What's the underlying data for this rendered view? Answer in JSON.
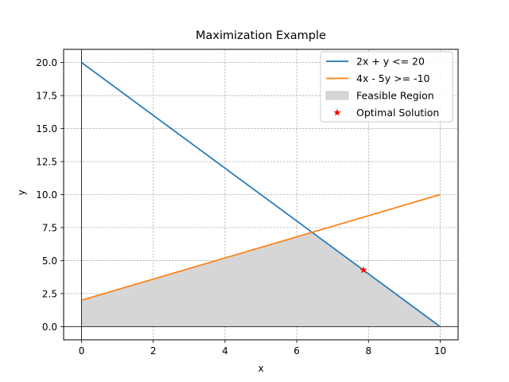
{
  "chart_data": {
    "type": "line",
    "title": "Maximization Example",
    "xlabel": "x",
    "ylabel": "y",
    "xlim": [
      -0.5,
      10.5
    ],
    "ylim": [
      -1.0,
      21.0
    ],
    "x_ticks": [
      0,
      2,
      4,
      6,
      8,
      10
    ],
    "y_ticks": [
      0.0,
      2.5,
      5.0,
      7.5,
      10.0,
      12.5,
      15.0,
      17.5,
      20.0
    ],
    "x_tick_labels": [
      "0",
      "2",
      "4",
      "6",
      "8",
      "10"
    ],
    "y_tick_labels": [
      "0.0",
      "2.5",
      "5.0",
      "7.5",
      "10.0",
      "12.5",
      "15.0",
      "17.5",
      "20.0"
    ],
    "grid": true,
    "grid_style": "dashed",
    "legend_position": "top-right",
    "series": [
      {
        "name": "2x + y <= 20",
        "type": "line",
        "color": "#1f77b4",
        "x": [
          0,
          10
        ],
        "y": [
          20,
          0
        ]
      },
      {
        "name": "4x - 5y >= -10",
        "type": "line",
        "color": "#ff7f0e",
        "x": [
          0,
          10
        ],
        "y": [
          2,
          10
        ]
      },
      {
        "name": "Feasible Region",
        "type": "area",
        "color": "#d6d6d6",
        "x": [
          0,
          6.43,
          10,
          0
        ],
        "y": [
          2,
          7.14,
          0,
          0
        ]
      },
      {
        "name": "Optimal Solution",
        "type": "scatter",
        "marker": "star",
        "color": "#ff0000",
        "x": [
          7.86
        ],
        "y": [
          4.29
        ]
      }
    ],
    "reference_lines": [
      {
        "orientation": "vertical",
        "value": 0,
        "color": "#000000"
      },
      {
        "orientation": "horizontal",
        "value": 0,
        "color": "#000000"
      }
    ]
  }
}
